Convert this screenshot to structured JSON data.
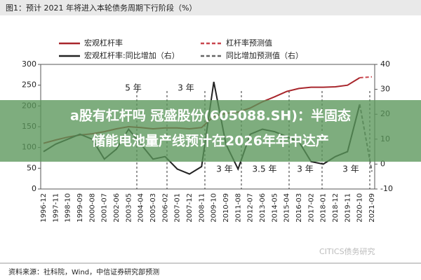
{
  "chart_data": {
    "type": "line",
    "title": "图1：预计 2021 年将进入本轮债务周期下行阶段（%）",
    "categories": [
      "1996-12",
      "1997-11",
      "1998-10",
      "1999-09",
      "2000-08",
      "2001-07",
      "2002-06",
      "2003-05",
      "2004-04",
      "2005-03",
      "2006-02",
      "2007-01",
      "2007-12",
      "2008-11",
      "2009-10",
      "2010-09",
      "2011-08",
      "2012-07",
      "2013-06",
      "2014-05",
      "2015-04",
      "2016-03",
      "2017-02",
      "2018-01",
      "2018-12",
      "2019-11",
      "2020-10",
      "2021-09"
    ],
    "series": [
      {
        "name": "宏观杠杆率",
        "color": "#a8262c",
        "style": "solid",
        "values": [
          110,
          118,
          125,
          130,
          133,
          138,
          145,
          150,
          148,
          145,
          147,
          147,
          145,
          148,
          175,
          182,
          185,
          195,
          210,
          222,
          235,
          242,
          245,
          245,
          246,
          250,
          268,
          null
        ]
      },
      {
        "name": "杠杆率预测值",
        "color": "#c9474e",
        "style": "dashed",
        "values": [
          null,
          null,
          null,
          null,
          null,
          null,
          null,
          null,
          null,
          null,
          null,
          null,
          null,
          null,
          null,
          null,
          null,
          null,
          null,
          null,
          null,
          null,
          null,
          null,
          null,
          null,
          268,
          270
        ]
      },
      {
        "name": "宏观杠杆率:同比增加（右）",
        "color": "#222222",
        "style": "solid",
        "axis": "y2",
        "values": [
          5,
          8,
          10,
          12,
          10,
          2,
          6,
          14,
          8,
          2,
          3,
          -2,
          -4,
          -1,
          33,
          8,
          -2,
          12,
          14,
          13,
          11,
          9,
          1,
          0,
          3,
          5,
          24,
          null
        ]
      },
      {
        "name": "同比增加预测值（右）",
        "color": "#666666",
        "style": "dashed",
        "axis": "y2",
        "values": [
          null,
          null,
          null,
          null,
          null,
          null,
          null,
          null,
          null,
          null,
          null,
          null,
          null,
          null,
          null,
          null,
          null,
          null,
          null,
          null,
          null,
          null,
          null,
          null,
          null,
          null,
          24,
          -3
        ]
      }
    ],
    "ylim": [
      0,
      300
    ],
    "yticks": [
      0,
      50,
      100,
      150,
      200,
      250,
      300
    ],
    "y2lim": [
      -10,
      40
    ],
    "y2ticks": [
      -10,
      0,
      10,
      20,
      30,
      40
    ],
    "annotations": [
      "5 年",
      "3 年",
      "3 年",
      "3.5 年",
      "3 年",
      "3 年"
    ],
    "overlay": [
      "a股有杠杆吗 冠盛股份(605088.SH)：半固态",
      "储能电池量产线预计在2026年年中达产"
    ],
    "source": "资料来源：社科院，Wind，中信证券研究部预测",
    "watermark": "CITICS债务研究"
  }
}
